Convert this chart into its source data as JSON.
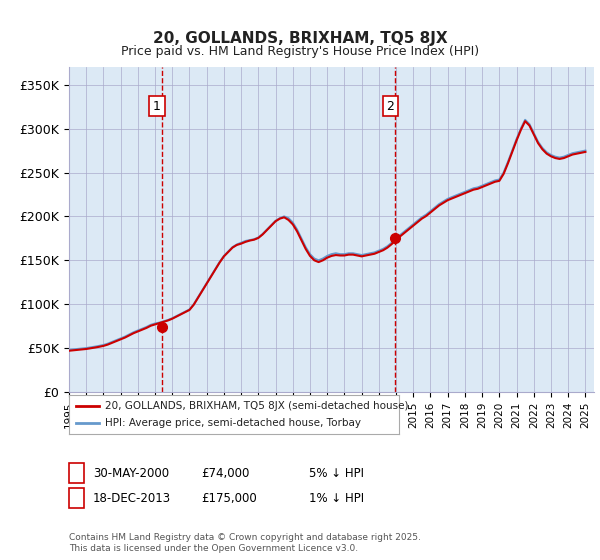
{
  "title": "20, GOLLANDS, BRIXHAM, TQ5 8JX",
  "subtitle": "Price paid vs. HM Land Registry's House Price Index (HPI)",
  "background_color": "#dce9f5",
  "plot_bg_color": "#dce9f5",
  "ylabel_color": "#222222",
  "ylim": [
    0,
    370000
  ],
  "yticks": [
    0,
    50000,
    100000,
    150000,
    200000,
    250000,
    300000,
    350000
  ],
  "ytick_labels": [
    "£0",
    "£50K",
    "£100K",
    "£150K",
    "£200K",
    "£250K",
    "£300K",
    "£350K"
  ],
  "xmin": 1995.0,
  "xmax": 2025.5,
  "xticks": [
    1995,
    1996,
    1997,
    1998,
    1999,
    2000,
    2001,
    2002,
    2003,
    2004,
    2005,
    2006,
    2007,
    2008,
    2009,
    2010,
    2011,
    2012,
    2013,
    2014,
    2015,
    2016,
    2017,
    2018,
    2019,
    2020,
    2021,
    2022,
    2023,
    2024,
    2025
  ],
  "legend_label_red": "20, GOLLANDS, BRIXHAM, TQ5 8JX (semi-detached house)",
  "legend_label_blue": "HPI: Average price, semi-detached house, Torbay",
  "footnote": "Contains HM Land Registry data © Crown copyright and database right 2025.\nThis data is licensed under the Open Government Licence v3.0.",
  "transaction1_label": "1",
  "transaction1_date": "30-MAY-2000",
  "transaction1_price": "£74,000",
  "transaction1_pct": "5% ↓ HPI",
  "transaction1_x": 2000.41,
  "transaction1_y": 74000,
  "transaction2_label": "2",
  "transaction2_date": "18-DEC-2013",
  "transaction2_price": "£175,000",
  "transaction2_pct": "1% ↓ HPI",
  "transaction2_x": 2013.96,
  "transaction2_y": 175000,
  "vline1_x": 2000.41,
  "vline2_x": 2013.96,
  "red_color": "#cc0000",
  "blue_color": "#6699cc",
  "vline_color": "#cc0000",
  "hpi_data_x": [
    1995.0,
    1995.25,
    1995.5,
    1995.75,
    1996.0,
    1996.25,
    1996.5,
    1996.75,
    1997.0,
    1997.25,
    1997.5,
    1997.75,
    1998.0,
    1998.25,
    1998.5,
    1998.75,
    1999.0,
    1999.25,
    1999.5,
    1999.75,
    2000.0,
    2000.25,
    2000.5,
    2000.75,
    2001.0,
    2001.25,
    2001.5,
    2001.75,
    2002.0,
    2002.25,
    2002.5,
    2002.75,
    2003.0,
    2003.25,
    2003.5,
    2003.75,
    2004.0,
    2004.25,
    2004.5,
    2004.75,
    2005.0,
    2005.25,
    2005.5,
    2005.75,
    2006.0,
    2006.25,
    2006.5,
    2006.75,
    2007.0,
    2007.25,
    2007.5,
    2007.75,
    2008.0,
    2008.25,
    2008.5,
    2008.75,
    2009.0,
    2009.25,
    2009.5,
    2009.75,
    2010.0,
    2010.25,
    2010.5,
    2010.75,
    2011.0,
    2011.25,
    2011.5,
    2011.75,
    2012.0,
    2012.25,
    2012.5,
    2012.75,
    2013.0,
    2013.25,
    2013.5,
    2013.75,
    2014.0,
    2014.25,
    2014.5,
    2014.75,
    2015.0,
    2015.25,
    2015.5,
    2015.75,
    2016.0,
    2016.25,
    2016.5,
    2016.75,
    2017.0,
    2017.25,
    2017.5,
    2017.75,
    2018.0,
    2018.25,
    2018.5,
    2018.75,
    2019.0,
    2019.25,
    2019.5,
    2019.75,
    2020.0,
    2020.25,
    2020.5,
    2020.75,
    2021.0,
    2021.25,
    2021.5,
    2021.75,
    2022.0,
    2022.25,
    2022.5,
    2022.75,
    2023.0,
    2023.25,
    2023.5,
    2023.75,
    2024.0,
    2024.25,
    2024.5,
    2024.75,
    2025.0
  ],
  "hpi_data_y": [
    48000,
    48500,
    49000,
    49500,
    50000,
    50800,
    51600,
    52500,
    53500,
    55000,
    57000,
    59000,
    61000,
    63000,
    65500,
    68000,
    70000,
    72000,
    74000,
    76500,
    78000,
    79000,
    80500,
    82000,
    84000,
    86500,
    89000,
    91500,
    94000,
    100000,
    108000,
    116000,
    124000,
    132000,
    140000,
    148000,
    155000,
    160000,
    165000,
    168000,
    170000,
    172000,
    173000,
    174000,
    176000,
    180000,
    185000,
    190000,
    195000,
    198000,
    200000,
    198000,
    193000,
    185000,
    175000,
    165000,
    157000,
    152000,
    150000,
    152000,
    155000,
    157000,
    158000,
    157000,
    157000,
    158000,
    158000,
    157000,
    156000,
    157000,
    158000,
    159000,
    161000,
    163000,
    166000,
    170000,
    175000,
    179000,
    183000,
    187000,
    191000,
    195000,
    199000,
    202000,
    206000,
    210000,
    214000,
    217000,
    220000,
    222000,
    224000,
    226000,
    228000,
    230000,
    232000,
    233000,
    235000,
    237000,
    239000,
    241000,
    242000,
    250000,
    262000,
    275000,
    288000,
    300000,
    310000,
    305000,
    295000,
    285000,
    278000,
    273000,
    270000,
    268000,
    267000,
    268000,
    270000,
    272000,
    273000,
    274000,
    275000
  ],
  "price_paid_points_x": [
    2000.41,
    2013.96
  ],
  "price_paid_points_y": [
    74000,
    175000
  ],
  "red_line_x": [
    1995.0,
    1995.25,
    1995.5,
    1995.75,
    1996.0,
    1996.25,
    1996.5,
    1996.75,
    1997.0,
    1997.25,
    1997.5,
    1997.75,
    1998.0,
    1998.25,
    1998.5,
    1998.75,
    1999.0,
    1999.25,
    1999.5,
    1999.75,
    2000.0,
    2000.25,
    2000.5,
    2000.75,
    2001.0,
    2001.25,
    2001.5,
    2001.75,
    2002.0,
    2002.25,
    2002.5,
    2002.75,
    2003.0,
    2003.25,
    2003.5,
    2003.75,
    2004.0,
    2004.25,
    2004.5,
    2004.75,
    2005.0,
    2005.25,
    2005.5,
    2005.75,
    2006.0,
    2006.25,
    2006.5,
    2006.75,
    2007.0,
    2007.25,
    2007.5,
    2007.75,
    2008.0,
    2008.25,
    2008.5,
    2008.75,
    2009.0,
    2009.25,
    2009.5,
    2009.75,
    2010.0,
    2010.25,
    2010.5,
    2010.75,
    2011.0,
    2011.25,
    2011.5,
    2011.75,
    2012.0,
    2012.25,
    2012.5,
    2012.75,
    2013.0,
    2013.25,
    2013.5,
    2013.75,
    2014.0,
    2014.25,
    2014.5,
    2014.75,
    2015.0,
    2015.25,
    2015.5,
    2015.75,
    2016.0,
    2016.25,
    2016.5,
    2016.75,
    2017.0,
    2017.25,
    2017.5,
    2017.75,
    2018.0,
    2018.25,
    2018.5,
    2018.75,
    2019.0,
    2019.25,
    2019.5,
    2019.75,
    2020.0,
    2020.25,
    2020.5,
    2020.75,
    2021.0,
    2021.25,
    2021.5,
    2021.75,
    2022.0,
    2022.25,
    2022.5,
    2022.75,
    2023.0,
    2023.25,
    2023.5,
    2023.75,
    2024.0,
    2024.25,
    2024.5,
    2024.75,
    2025.0
  ],
  "red_line_y": [
    47000,
    47500,
    48000,
    48500,
    49000,
    49800,
    50600,
    51500,
    52500,
    54000,
    56000,
    58000,
    60000,
    62000,
    64500,
    67000,
    69000,
    71000,
    73000,
    75500,
    77000,
    78500,
    80000,
    81500,
    83500,
    86000,
    88500,
    91000,
    93500,
    99500,
    107500,
    115500,
    123500,
    131500,
    139500,
    147500,
    154500,
    159500,
    164500,
    167500,
    169000,
    171000,
    172500,
    173500,
    175500,
    179500,
    184500,
    189500,
    194500,
    197500,
    199000,
    196000,
    191000,
    183000,
    173000,
    163000,
    155000,
    150000,
    148000,
    150000,
    153000,
    155000,
    156000,
    155500,
    155500,
    156500,
    156500,
    155500,
    154500,
    155500,
    156500,
    157500,
    159500,
    161500,
    164500,
    168500,
    173500,
    177500,
    181500,
    185500,
    189500,
    193500,
    197500,
    200500,
    204500,
    208500,
    212500,
    215500,
    218500,
    220500,
    222500,
    224500,
    226500,
    228500,
    230500,
    231500,
    233500,
    235500,
    237500,
    239500,
    240500,
    248500,
    260500,
    273500,
    286500,
    298500,
    308500,
    303500,
    293500,
    283500,
    276500,
    271500,
    268500,
    266500,
    265500,
    266500,
    268500,
    270500,
    271500,
    272500,
    273500
  ]
}
